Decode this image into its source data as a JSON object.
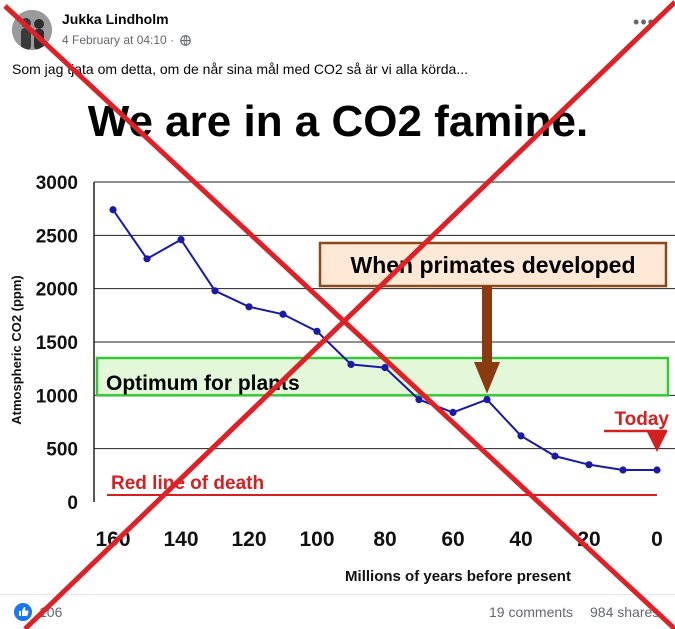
{
  "post": {
    "author": "Jukka Lindholm",
    "timestamp": "4 February at 04:10 ·",
    "privacy_icon": "globe-icon",
    "more_icon": "more-options-icon",
    "text": "Som jag tjata om detta, om de når sina mål med CO2 så är vi alla körda..."
  },
  "image": {
    "headline": "We are in a CO2 famine.",
    "annotations": {
      "primates": "When primates developed",
      "optimum": "Optimum for plants",
      "today": "Today",
      "death_line": "Red line of death"
    },
    "overlay": "red-x-mark",
    "colors": {
      "line": "#1a1aa6",
      "optimum_fill": "#e3f8d8",
      "optimum_border": "#37c837",
      "arrow": "#8b3a10",
      "annotation_red": "#d42020",
      "label_box_fill": "#fde9d6",
      "x_mark": "#e02027"
    }
  },
  "chart_data": {
    "type": "line",
    "title": "We are in a CO2 famine.",
    "xlabel": "Millions of years before present",
    "ylabel": "Atmospheric CO2 (ppm)",
    "x_reversed": true,
    "xlim": [
      160,
      0
    ],
    "ylim": [
      0,
      3000
    ],
    "x_ticks": [
      "160",
      "140",
      "120",
      "100",
      "80",
      "60",
      "40",
      "20",
      "0"
    ],
    "y_ticks": [
      "0",
      "500",
      "1000",
      "1500",
      "2000",
      "2500",
      "3000"
    ],
    "grid": true,
    "series": [
      {
        "x": [
          160,
          150,
          140,
          130,
          120,
          110,
          100,
          90,
          80,
          70,
          60,
          50,
          40,
          30,
          20,
          10,
          0
        ],
        "y": [
          2740,
          2280,
          2460,
          1980,
          1830,
          1760,
          1600,
          1290,
          1260,
          960,
          840,
          960,
          620,
          430,
          350,
          300,
          300
        ]
      }
    ],
    "optimum_band": [
      1000,
      1350
    ],
    "death_line_y": 150,
    "primates_x": 50,
    "today_x": 0
  },
  "footer": {
    "reactions": "106",
    "reaction_icon": "like-icon",
    "comments": "19 comments",
    "shares": "984 shares"
  }
}
